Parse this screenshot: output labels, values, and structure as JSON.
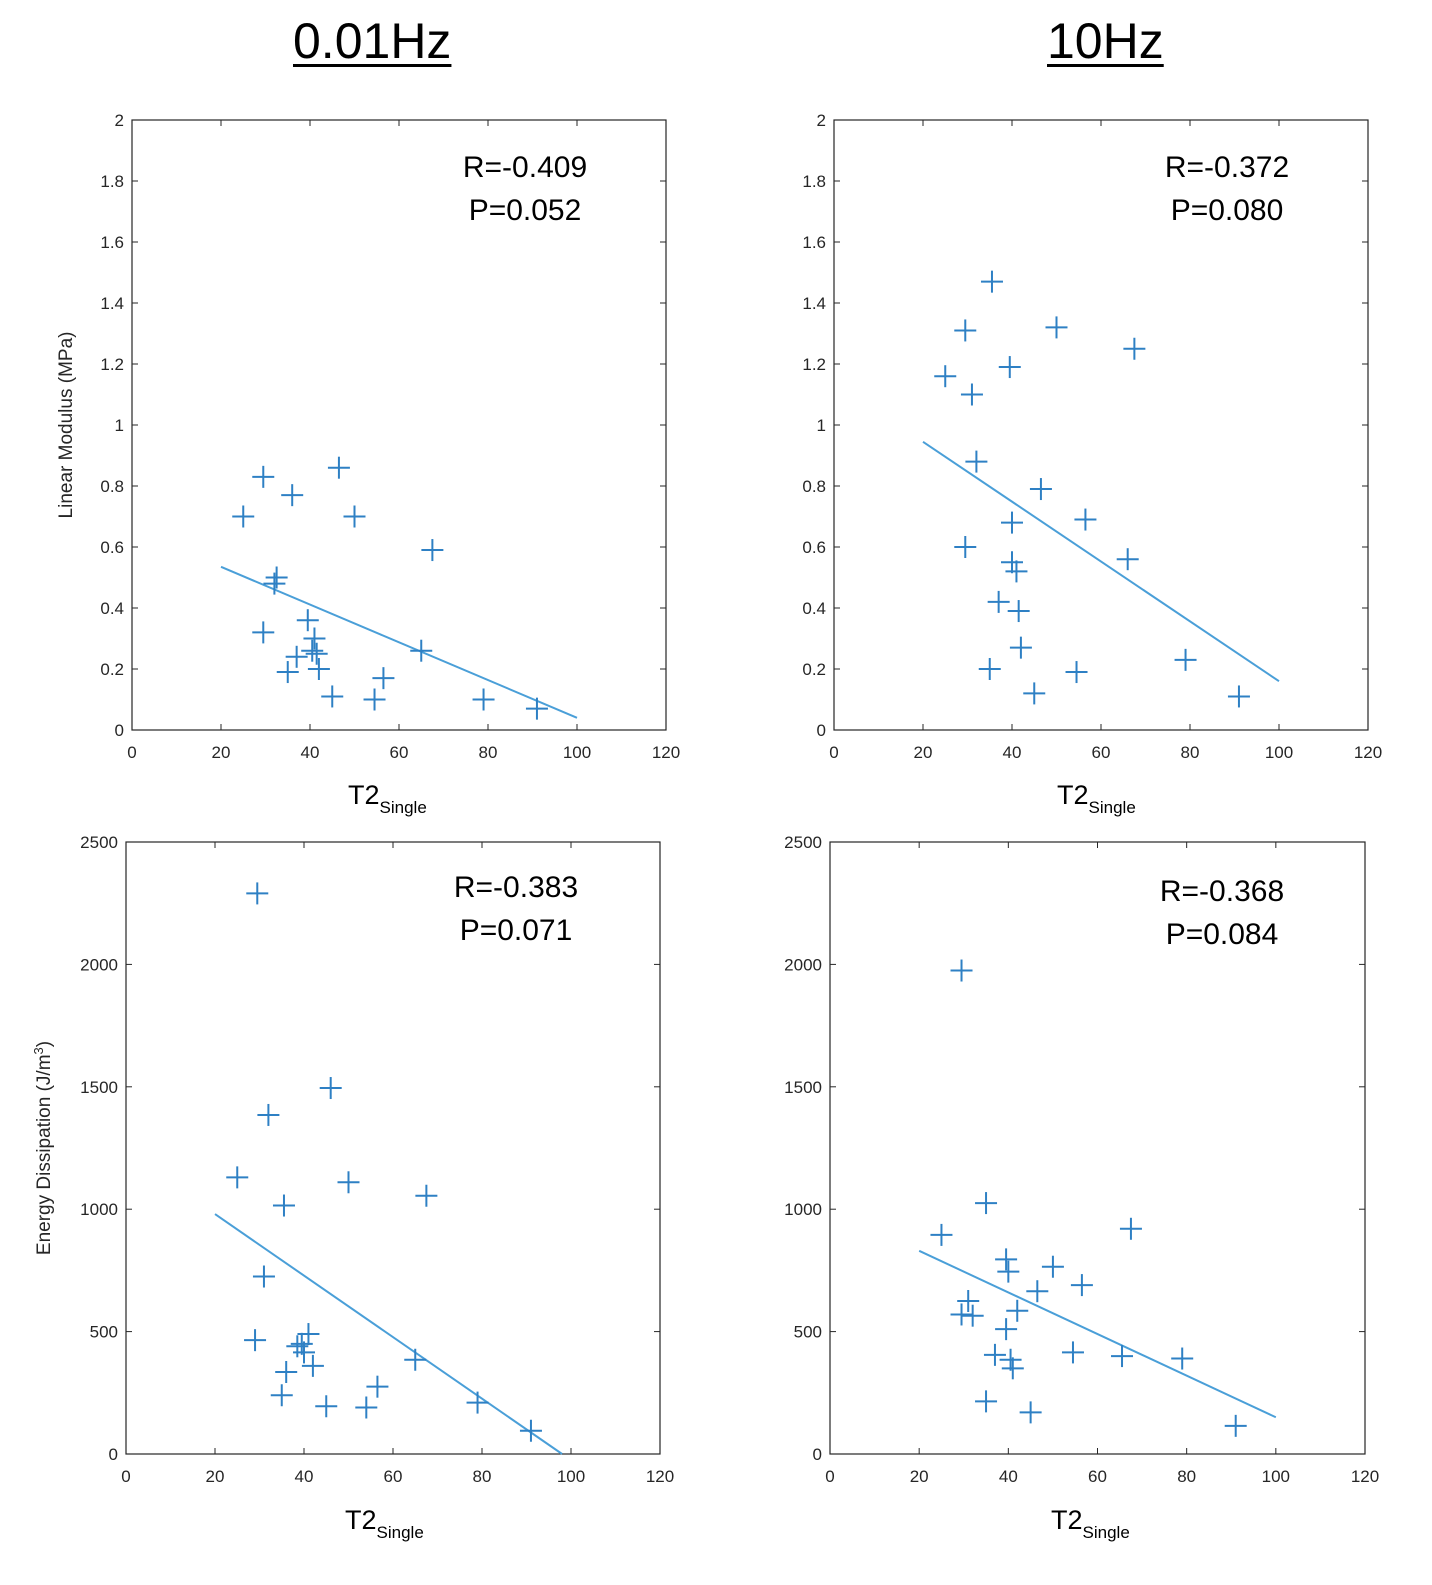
{
  "titles": {
    "left": "0.01Hz",
    "right": "10Hz"
  },
  "chart_data": [
    {
      "type": "scatter",
      "panel": "top-left",
      "title": "0.01Hz",
      "xlabel": "T2",
      "xlabel_sub": "Single",
      "ylabel": "Linear Modulus (MPa)",
      "ylabel_sup": "",
      "xlim": [
        0,
        120
      ],
      "ylim": [
        0,
        2
      ],
      "xticks": [
        0,
        20,
        40,
        60,
        80,
        100,
        120
      ],
      "yticks": [
        0,
        0.2,
        0.4,
        0.6,
        0.8,
        1,
        1.2,
        1.4,
        1.6,
        1.8,
        2
      ],
      "stats": {
        "r": "R=-0.409",
        "p": "P=0.052"
      },
      "points": [
        [
          25,
          0.7
        ],
        [
          29.5,
          0.83
        ],
        [
          36,
          0.77
        ],
        [
          46.5,
          0.86
        ],
        [
          50,
          0.7
        ],
        [
          67.5,
          0.59
        ],
        [
          29.5,
          0.32
        ],
        [
          32,
          0.48
        ],
        [
          32.5,
          0.5
        ],
        [
          39.5,
          0.36
        ],
        [
          41,
          0.3
        ],
        [
          40.5,
          0.26
        ],
        [
          41.5,
          0.25
        ],
        [
          37,
          0.24
        ],
        [
          35,
          0.19
        ],
        [
          42,
          0.2
        ],
        [
          45,
          0.11
        ],
        [
          56.5,
          0.17
        ],
        [
          54.5,
          0.1
        ],
        [
          65,
          0.26
        ],
        [
          79,
          0.1
        ],
        [
          91,
          0.07
        ]
      ],
      "fit": [
        [
          20,
          0.535
        ],
        [
          100,
          0.04
        ]
      ]
    },
    {
      "type": "scatter",
      "panel": "top-right",
      "title": "10Hz",
      "xlabel": "T2",
      "xlabel_sub": "Single",
      "ylabel": "",
      "ylabel_sup": "",
      "xlim": [
        0,
        120
      ],
      "ylim": [
        0,
        2
      ],
      "xticks": [
        0,
        20,
        40,
        60,
        80,
        100,
        120
      ],
      "yticks": [
        0,
        0.2,
        0.4,
        0.6,
        0.8,
        1,
        1.2,
        1.4,
        1.6,
        1.8,
        2
      ],
      "stats": {
        "r": "R=-0.372",
        "p": "P=0.080"
      },
      "points": [
        [
          35.5,
          1.47
        ],
        [
          29.5,
          1.31
        ],
        [
          50,
          1.32
        ],
        [
          67.5,
          1.25
        ],
        [
          25,
          1.16
        ],
        [
          39.5,
          1.19
        ],
        [
          31,
          1.1
        ],
        [
          32,
          0.88
        ],
        [
          46.5,
          0.79
        ],
        [
          40,
          0.68
        ],
        [
          56.5,
          0.69
        ],
        [
          29.5,
          0.6
        ],
        [
          66,
          0.56
        ],
        [
          40,
          0.55
        ],
        [
          41,
          0.52
        ],
        [
          37,
          0.42
        ],
        [
          41.5,
          0.39
        ],
        [
          42,
          0.27
        ],
        [
          35,
          0.2
        ],
        [
          54.5,
          0.19
        ],
        [
          79,
          0.23
        ],
        [
          45,
          0.12
        ],
        [
          91,
          0.11
        ]
      ],
      "fit": [
        [
          20,
          0.945
        ],
        [
          100,
          0.16
        ]
      ]
    },
    {
      "type": "scatter",
      "panel": "bottom-left",
      "title": "0.01Hz",
      "xlabel": "T2",
      "xlabel_sub": "Single",
      "ylabel": "Energy Dissipation (J/m",
      "ylabel_sup": "3",
      "ylabel_close": ")",
      "xlim": [
        0,
        120
      ],
      "ylim": [
        0,
        2500
      ],
      "xticks": [
        0,
        20,
        40,
        60,
        80,
        100,
        120
      ],
      "yticks": [
        0,
        500,
        1000,
        1500,
        2000,
        2500
      ],
      "stats": {
        "r": "R=-0.383",
        "p": "P=0.071"
      },
      "points": [
        [
          29.5,
          2290
        ],
        [
          46,
          1495
        ],
        [
          32,
          1385
        ],
        [
          25,
          1130
        ],
        [
          50,
          1110
        ],
        [
          67.5,
          1055
        ],
        [
          35.5,
          1015
        ],
        [
          31,
          725
        ],
        [
          29,
          465
        ],
        [
          39.5,
          450
        ],
        [
          41,
          490
        ],
        [
          40,
          415
        ],
        [
          38.5,
          440
        ],
        [
          42,
          360
        ],
        [
          36,
          335
        ],
        [
          35,
          240
        ],
        [
          56.5,
          275
        ],
        [
          65,
          385
        ],
        [
          45,
          195
        ],
        [
          54,
          190
        ],
        [
          79,
          210
        ],
        [
          91,
          95
        ]
      ],
      "fit": [
        [
          20,
          980
        ],
        [
          98,
          0
        ]
      ]
    },
    {
      "type": "scatter",
      "panel": "bottom-right",
      "title": "10Hz",
      "xlabel": "T2",
      "xlabel_sub": "Single",
      "ylabel": "",
      "ylabel_sup": "",
      "xlim": [
        0,
        120
      ],
      "ylim": [
        0,
        2500
      ],
      "xticks": [
        0,
        20,
        40,
        60,
        80,
        100,
        120
      ],
      "yticks": [
        0,
        500,
        1000,
        1500,
        2000,
        2500
      ],
      "stats": {
        "r": "R=-0.368",
        "p": "P=0.084"
      },
      "points": [
        [
          29.5,
          1975
        ],
        [
          35,
          1025
        ],
        [
          67.5,
          920
        ],
        [
          25,
          895
        ],
        [
          39.5,
          795
        ],
        [
          50,
          765
        ],
        [
          40,
          745
        ],
        [
          56.5,
          690
        ],
        [
          46.5,
          665
        ],
        [
          31,
          625
        ],
        [
          29.5,
          570
        ],
        [
          42,
          585
        ],
        [
          32,
          565
        ],
        [
          39.5,
          510
        ],
        [
          37,
          405
        ],
        [
          65.5,
          400
        ],
        [
          54.5,
          415
        ],
        [
          79,
          390
        ],
        [
          40.5,
          385
        ],
        [
          41,
          350
        ],
        [
          35,
          215
        ],
        [
          45,
          170
        ],
        [
          91,
          115
        ]
      ],
      "fit": [
        [
          20,
          830
        ],
        [
          100,
          150
        ]
      ]
    }
  ],
  "style": {
    "marker_color": "#2e80c4",
    "fit_color": "#4a9fd8",
    "axis_color": "#262626"
  }
}
